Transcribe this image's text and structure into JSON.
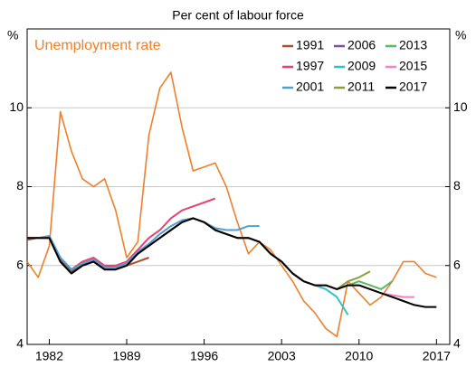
{
  "chart_data": {
    "type": "line",
    "subtitle": "Per cent of labour force",
    "y_unit": "%",
    "x": [
      1980,
      1981,
      1982,
      1983,
      1984,
      1985,
      1986,
      1987,
      1988,
      1989,
      1990,
      1991,
      1992,
      1993,
      1994,
      1995,
      1996,
      1997,
      1998,
      1999,
      2000,
      2001,
      2002,
      2003,
      2004,
      2005,
      2006,
      2007,
      2008,
      2009,
      2010,
      2011,
      2012,
      2013,
      2014,
      2015,
      2016,
      2017
    ],
    "xlim": [
      1980,
      2018.2
    ],
    "xticks": [
      1982,
      1989,
      1996,
      2003,
      2010,
      2017
    ],
    "ylim": [
      4,
      12
    ],
    "yticks": [
      4,
      6,
      8,
      10
    ],
    "grid": true,
    "series": [
      {
        "name": "Unemployment rate",
        "color": "#f07f2a",
        "values": [
          6.1,
          5.7,
          6.5,
          9.9,
          8.9,
          8.2,
          8.0,
          8.2,
          7.4,
          6.2,
          6.6,
          9.3,
          10.5,
          10.9,
          9.5,
          8.4,
          8.5,
          8.6,
          8.0,
          7.1,
          6.3,
          6.6,
          6.4,
          6.0,
          5.6,
          5.1,
          4.8,
          4.4,
          4.2,
          5.6,
          5.3,
          5.0,
          5.2,
          5.6,
          6.1,
          6.1,
          5.8,
          5.7
        ]
      },
      {
        "name": "1991",
        "color": "#a0522d",
        "values": [
          6.65,
          6.7,
          6.7,
          6.15,
          5.85,
          6.05,
          6.15,
          5.95,
          6.0,
          6.0,
          6.1,
          6.2,
          null,
          null,
          null,
          null,
          null,
          null,
          null,
          null,
          null,
          null,
          null,
          null,
          null,
          null,
          null,
          null,
          null,
          null,
          null,
          null,
          null,
          null,
          null,
          null,
          null,
          null
        ]
      },
      {
        "name": "1997",
        "color": "#e8436f",
        "values": [
          6.7,
          6.7,
          6.7,
          6.2,
          5.9,
          6.1,
          6.2,
          6.0,
          6.0,
          6.1,
          6.4,
          6.7,
          6.9,
          7.2,
          7.4,
          7.5,
          7.6,
          7.7,
          null,
          null,
          null,
          null,
          null,
          null,
          null,
          null,
          null,
          null,
          null,
          null,
          null,
          null,
          null,
          null,
          null,
          null,
          null,
          null
        ]
      },
      {
        "name": "2001",
        "color": "#4f9fd5",
        "values": [
          6.7,
          6.7,
          6.75,
          6.2,
          5.9,
          6.05,
          6.15,
          5.95,
          5.95,
          6.05,
          6.35,
          6.55,
          6.8,
          7.0,
          7.15,
          7.2,
          7.1,
          6.95,
          6.9,
          6.9,
          7.0,
          7.0,
          null,
          null,
          null,
          null,
          null,
          null,
          null,
          null,
          null,
          null,
          null,
          null,
          null,
          null,
          null,
          null
        ]
      },
      {
        "name": "2006",
        "color": "#7b4fa0",
        "values": [
          6.7,
          6.7,
          6.7,
          6.1,
          5.8,
          6.0,
          6.1,
          5.9,
          5.9,
          6.0,
          6.3,
          6.5,
          6.7,
          6.9,
          7.1,
          7.2,
          7.1,
          6.9,
          6.8,
          6.7,
          6.7,
          6.6,
          6.3,
          6.1,
          5.8,
          5.6,
          5.5,
          null,
          null,
          null,
          null,
          null,
          null,
          null,
          null,
          null,
          null,
          null
        ]
      },
      {
        "name": "2009",
        "color": "#2bc4c9",
        "values": [
          6.7,
          6.7,
          6.7,
          6.1,
          5.8,
          6.0,
          6.1,
          5.9,
          5.9,
          6.0,
          6.3,
          6.5,
          6.7,
          6.9,
          7.1,
          7.2,
          7.1,
          6.9,
          6.8,
          6.7,
          6.7,
          6.6,
          6.3,
          6.1,
          5.8,
          5.6,
          5.5,
          5.4,
          5.2,
          4.75,
          null,
          null,
          null,
          null,
          null,
          null,
          null,
          null
        ]
      },
      {
        "name": "2011",
        "color": "#8aa03a",
        "values": [
          6.7,
          6.7,
          6.7,
          6.1,
          5.8,
          6.0,
          6.1,
          5.9,
          5.9,
          6.0,
          6.3,
          6.5,
          6.7,
          6.9,
          7.1,
          7.2,
          7.1,
          6.9,
          6.8,
          6.7,
          6.7,
          6.6,
          6.3,
          6.1,
          5.8,
          5.6,
          5.5,
          5.5,
          5.4,
          5.6,
          5.7,
          5.85,
          null,
          null,
          null,
          null,
          null,
          null
        ]
      },
      {
        "name": "2013",
        "color": "#5cb85c",
        "values": [
          6.7,
          6.7,
          6.7,
          6.1,
          5.8,
          6.0,
          6.1,
          5.9,
          5.9,
          6.0,
          6.3,
          6.5,
          6.7,
          6.9,
          7.1,
          7.2,
          7.1,
          6.9,
          6.8,
          6.7,
          6.7,
          6.6,
          6.3,
          6.1,
          5.8,
          5.6,
          5.5,
          5.5,
          5.4,
          5.5,
          5.6,
          5.5,
          5.4,
          5.6,
          null,
          null,
          null,
          null
        ]
      },
      {
        "name": "2015",
        "color": "#f080c0",
        "values": [
          6.7,
          6.7,
          6.7,
          6.1,
          5.8,
          6.0,
          6.1,
          5.9,
          5.9,
          6.0,
          6.3,
          6.5,
          6.7,
          6.9,
          7.1,
          7.2,
          7.1,
          6.9,
          6.8,
          6.7,
          6.7,
          6.6,
          6.3,
          6.1,
          5.8,
          5.6,
          5.5,
          5.5,
          5.4,
          5.5,
          5.5,
          5.4,
          5.3,
          5.25,
          5.2,
          5.2,
          null,
          null
        ]
      },
      {
        "name": "2017",
        "color": "#000000",
        "values": [
          6.7,
          6.7,
          6.7,
          6.1,
          5.8,
          6.0,
          6.1,
          5.9,
          5.9,
          6.0,
          6.3,
          6.5,
          6.7,
          6.9,
          7.1,
          7.2,
          7.1,
          6.9,
          6.8,
          6.7,
          6.7,
          6.6,
          6.3,
          6.1,
          5.8,
          5.6,
          5.5,
          5.5,
          5.4,
          5.5,
          5.5,
          5.4,
          5.3,
          5.2,
          5.1,
          5.0,
          4.95,
          4.95
        ]
      }
    ]
  }
}
